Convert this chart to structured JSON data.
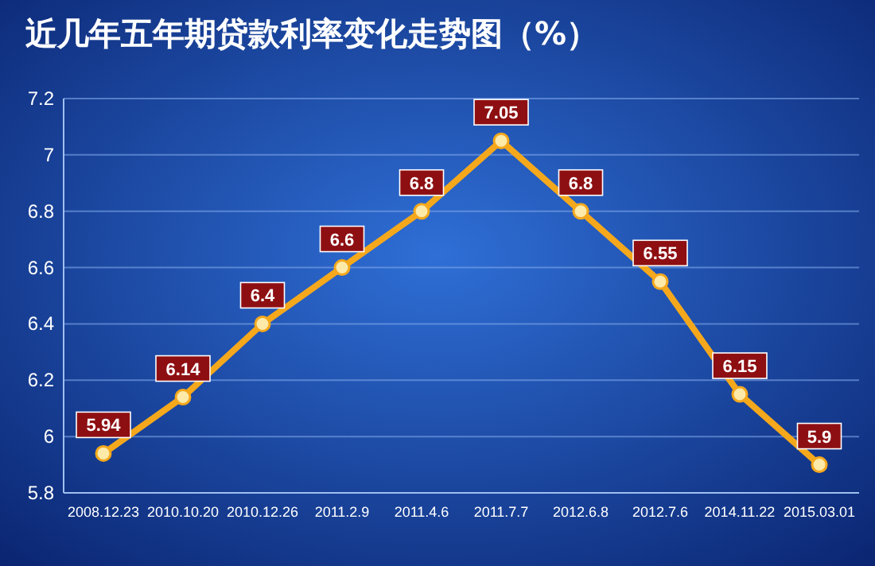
{
  "chart_data": {
    "type": "line",
    "title": "近几年五年期贷款利率变化走势图（%）",
    "categories": [
      "2008.12.23",
      "2010.10.20",
      "2010.12.26",
      "2011.2.9",
      "2011.4.6",
      "2011.7.7",
      "2012.6.8",
      "2012.7.6",
      "2014.11.22",
      "2015.03.01"
    ],
    "series": [
      {
        "color": "#f5a81c",
        "values": [
          5.94,
          6.14,
          6.4,
          6.6,
          6.8,
          7.05,
          6.8,
          6.55,
          6.15,
          5.9
        ]
      }
    ],
    "ylim": [
      5.8,
      7.2
    ],
    "yticks": [
      5.8,
      6,
      6.2,
      6.4,
      6.6,
      6.8,
      7,
      7.2
    ],
    "grid": "y",
    "marker": "circle",
    "data_labels": true
  }
}
